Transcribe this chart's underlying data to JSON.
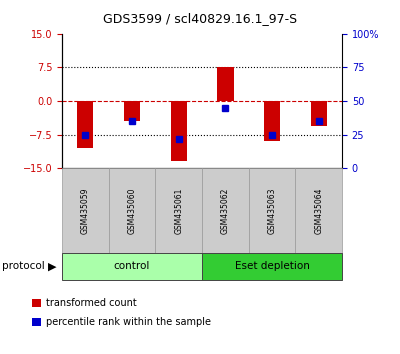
{
  "title": "GDS3599 / scl40829.16.1_97-S",
  "samples": [
    "GSM435059",
    "GSM435060",
    "GSM435061",
    "GSM435062",
    "GSM435063",
    "GSM435064"
  ],
  "red_bars": [
    -10.5,
    -4.5,
    -13.5,
    7.5,
    -9.0,
    -5.5
  ],
  "blue_dots": [
    -7.5,
    -4.5,
    -8.5,
    -1.5,
    -7.5,
    -4.5
  ],
  "groups": [
    {
      "label": "control",
      "start": 0,
      "end": 3,
      "color": "#AAFFAA"
    },
    {
      "label": "Eset depletion",
      "start": 3,
      "end": 6,
      "color": "#33CC33"
    }
  ],
  "ylim": [
    -15,
    15
  ],
  "yticks_left": [
    -15,
    -7.5,
    0,
    7.5,
    15
  ],
  "yticks_right_pct": [
    0,
    25,
    50,
    75,
    100
  ],
  "bar_color": "#CC0000",
  "dot_color": "#0000CC",
  "zero_line_color": "#CC0000",
  "legend_items": [
    {
      "color": "#CC0000",
      "label": "transformed count"
    },
    {
      "color": "#0000CC",
      "label": "percentile rank within the sample"
    }
  ],
  "protocol_label": "protocol"
}
